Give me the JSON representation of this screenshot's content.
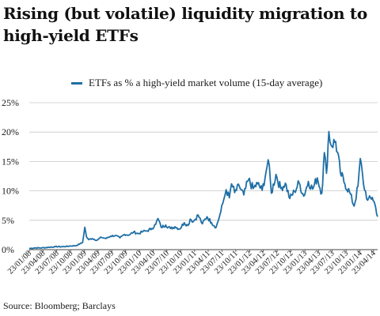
{
  "chart_data": {
    "type": "line",
    "title": "Rising (but volatile) liquidity migration to high-yield ETFs",
    "source": "Source: Bloomberg; Barclays",
    "y_unit": "%",
    "ylim": [
      0,
      25
    ],
    "yticks": [
      0,
      5,
      10,
      15,
      20,
      25
    ],
    "ytick_labels": [
      "0%",
      "5%",
      "10%",
      "15%",
      "20%",
      "25%"
    ],
    "x_start": "2008-01-23",
    "x_end": "2014-05-20",
    "xtick_dates": [
      "2008-01-23",
      "2008-04-23",
      "2008-07-23",
      "2008-10-23",
      "2009-01-23",
      "2009-04-23",
      "2009-07-23",
      "2009-10-23",
      "2010-01-23",
      "2010-04-23",
      "2010-07-23",
      "2010-10-23",
      "2011-01-23",
      "2011-04-23",
      "2011-07-23",
      "2011-10-23",
      "2012-01-23",
      "2012-04-23",
      "2012-07-23",
      "2012-10-23",
      "2013-01-23",
      "2013-04-23",
      "2013-07-23",
      "2013-10-23",
      "2014-01-23",
      "2014-04-23"
    ],
    "xtick_labels": [
      "23/01/08",
      "23/04/08",
      "23/07/08",
      "23/10/08",
      "23/01/09",
      "23/04/09",
      "23/07/09",
      "23/10/09",
      "23/01/10",
      "23/04/10",
      "23/07/10",
      "23/10/10",
      "23/01/11",
      "23/04/11",
      "23/07/11",
      "23/10/11",
      "23/01/12",
      "23/04/12",
      "23/07/12",
      "23/10/12",
      "23/01/13",
      "23/04/13",
      "23/07/13",
      "23/10/13",
      "23/01/14",
      "23/04/14"
    ],
    "grid": {
      "horizontal": true,
      "vertical": false
    },
    "legend_position": "top",
    "series": [
      {
        "name": "ETFs as % a high-yield market volume (15-day average)",
        "color": "#1f6fa6",
        "x": [
          "2008-01-23",
          "2008-03-01",
          "2008-04-15",
          "2008-06-01",
          "2008-07-15",
          "2008-09-01",
          "2008-10-15",
          "2008-12-01",
          "2009-01-10",
          "2009-01-25",
          "2009-02-05",
          "2009-02-20",
          "2009-03-15",
          "2009-04-15",
          "2009-05-15",
          "2009-06-15",
          "2009-07-15",
          "2009-08-15",
          "2009-09-15",
          "2009-10-15",
          "2009-11-15",
          "2009-12-15",
          "2010-01-15",
          "2010-02-15",
          "2010-03-15",
          "2010-04-15",
          "2010-05-10",
          "2010-05-25",
          "2010-06-15",
          "2010-07-15",
          "2010-08-15",
          "2010-09-15",
          "2010-10-15",
          "2010-11-15",
          "2010-12-10",
          "2010-12-25",
          "2011-01-15",
          "2011-02-15",
          "2011-03-15",
          "2011-04-15",
          "2011-05-15",
          "2011-06-15",
          "2011-07-15",
          "2011-08-05",
          "2011-08-20",
          "2011-09-10",
          "2011-09-25",
          "2011-10-15",
          "2011-11-15",
          "2011-12-15",
          "2012-01-15",
          "2012-02-15",
          "2012-03-15",
          "2012-04-15",
          "2012-05-10",
          "2012-05-25",
          "2012-06-15",
          "2012-07-15",
          "2012-08-15",
          "2012-09-15",
          "2012-10-15",
          "2012-11-15",
          "2012-12-15",
          "2013-01-15",
          "2013-02-15",
          "2013-03-15",
          "2013-04-15",
          "2013-05-15",
          "2013-06-01",
          "2013-06-15",
          "2013-07-01",
          "2013-07-15",
          "2013-08-15",
          "2013-09-15",
          "2013-10-15",
          "2013-11-15",
          "2013-12-15",
          "2014-01-10",
          "2014-01-25",
          "2014-02-15",
          "2014-03-15",
          "2014-04-15",
          "2014-05-01",
          "2014-05-20"
        ],
        "y": [
          0.2,
          0.3,
          0.3,
          0.4,
          0.5,
          0.5,
          0.6,
          0.7,
          1.2,
          3.8,
          2.2,
          1.7,
          1.9,
          1.6,
          2.1,
          1.9,
          2.3,
          2.4,
          2.0,
          2.6,
          2.5,
          3.0,
          2.7,
          3.1,
          3.2,
          3.6,
          4.3,
          5.3,
          3.8,
          4.2,
          3.6,
          3.9,
          3.5,
          4.6,
          4.1,
          5.2,
          4.8,
          5.9,
          4.4,
          5.6,
          4.6,
          3.8,
          6.4,
          8.6,
          10.2,
          8.8,
          11.2,
          9.7,
          10.8,
          9.3,
          11.9,
          10.4,
          11.2,
          10.1,
          13.2,
          15.3,
          9.6,
          12.8,
          10.4,
          11.3,
          8.7,
          9.9,
          11.4,
          9.1,
          11.6,
          10.3,
          12.2,
          9.6,
          16.5,
          13.0,
          20.1,
          17.8,
          18.4,
          13.1,
          11.2,
          9.8,
          7.4,
          10.8,
          15.5,
          11.2,
          8.4,
          8.9,
          7.8,
          5.6
        ]
      }
    ]
  }
}
